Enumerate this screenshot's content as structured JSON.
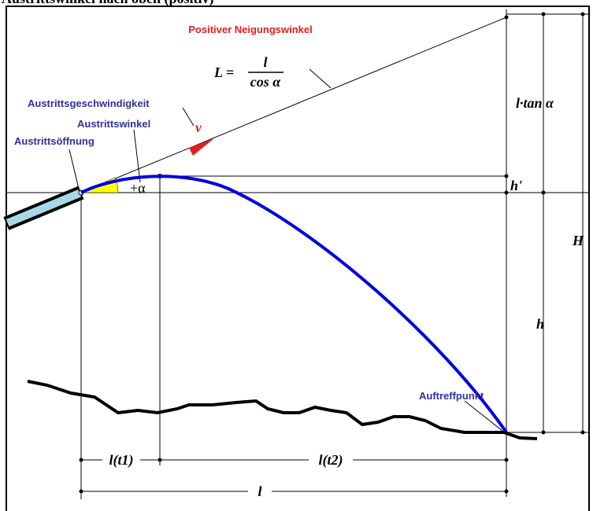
{
  "header": {
    "title": "Austrittswinkel nach oben (positiv)"
  },
  "labels": {
    "incline": "Positiver Neigungswinkel",
    "formula_lhs": "L =",
    "formula_num": "l",
    "formula_den": "cos α",
    "exit_velocity": "Austrittsgeschwindigkeit",
    "velocity_symbol": "v",
    "exit_angle": "Austrittswinkel",
    "exit_opening": "Austrittsöffnung",
    "angle_symbol": "+α",
    "rise": "l·tan α",
    "h_prime": "h'",
    "H": "H",
    "h": "h",
    "impact_point": "Auftreffpunkt",
    "l_t1": "l(t1)",
    "l_t2": "l(t2)",
    "l": "l"
  }
}
